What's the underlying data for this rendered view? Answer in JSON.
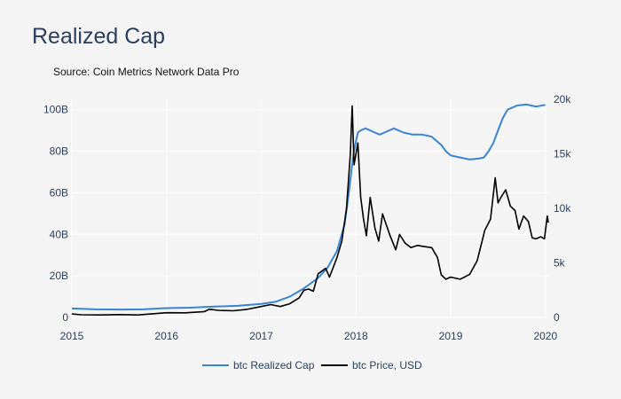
{
  "chart_data": {
    "type": "line",
    "title": "Realized Cap",
    "subtitle": "Source: Coin Metrics Network Data Pro",
    "x_ticks": [
      "2015",
      "2016",
      "2017",
      "2018",
      "2019",
      "2020"
    ],
    "y_left_ticks": [
      "0",
      "20B",
      "40B",
      "60B",
      "80B",
      "100B"
    ],
    "y_left_range": [
      0,
      105
    ],
    "y_left_unit": "B USD",
    "y_right_ticks": [
      "0",
      "5k",
      "10k",
      "15k",
      "20k"
    ],
    "y_right_range": [
      0,
      20000
    ],
    "x_range": [
      2015.0,
      2020.03
    ],
    "grid": true,
    "legend_position": "bottom",
    "series": [
      {
        "name": "btc Realized Cap",
        "axis": "left",
        "color": "#3a84d6",
        "points": [
          [
            2015.0,
            4.3
          ],
          [
            2015.25,
            3.9
          ],
          [
            2015.5,
            3.8
          ],
          [
            2015.75,
            3.9
          ],
          [
            2016.0,
            4.5
          ],
          [
            2016.25,
            4.7
          ],
          [
            2016.5,
            5.2
          ],
          [
            2016.75,
            5.6
          ],
          [
            2017.0,
            6.5
          ],
          [
            2017.15,
            7.5
          ],
          [
            2017.3,
            10
          ],
          [
            2017.45,
            14
          ],
          [
            2017.6,
            19
          ],
          [
            2017.7,
            24
          ],
          [
            2017.8,
            32
          ],
          [
            2017.88,
            45
          ],
          [
            2017.93,
            62
          ],
          [
            2017.97,
            78
          ],
          [
            2018.0,
            85
          ],
          [
            2018.02,
            89
          ],
          [
            2018.05,
            90
          ],
          [
            2018.1,
            91
          ],
          [
            2018.2,
            89
          ],
          [
            2018.25,
            88
          ],
          [
            2018.3,
            89
          ],
          [
            2018.4,
            91
          ],
          [
            2018.5,
            89
          ],
          [
            2018.6,
            88
          ],
          [
            2018.7,
            88
          ],
          [
            2018.8,
            87
          ],
          [
            2018.85,
            85
          ],
          [
            2018.9,
            83
          ],
          [
            2018.95,
            80
          ],
          [
            2019.0,
            78
          ],
          [
            2019.1,
            77
          ],
          [
            2019.2,
            76
          ],
          [
            2019.3,
            76.5
          ],
          [
            2019.35,
            77
          ],
          [
            2019.4,
            80
          ],
          [
            2019.45,
            84
          ],
          [
            2019.5,
            90
          ],
          [
            2019.55,
            96
          ],
          [
            2019.6,
            100
          ],
          [
            2019.7,
            102
          ],
          [
            2019.8,
            102.5
          ],
          [
            2019.9,
            101.5
          ],
          [
            2020.0,
            102.3
          ]
        ]
      },
      {
        "name": "btc Price, USD",
        "axis": "right",
        "color": "#000000",
        "points": [
          [
            2015.0,
            320
          ],
          [
            2015.1,
            240
          ],
          [
            2015.3,
            230
          ],
          [
            2015.5,
            260
          ],
          [
            2015.7,
            230
          ],
          [
            2015.85,
            330
          ],
          [
            2016.0,
            430
          ],
          [
            2016.2,
            420
          ],
          [
            2016.4,
            540
          ],
          [
            2016.45,
            750
          ],
          [
            2016.55,
            650
          ],
          [
            2016.7,
            610
          ],
          [
            2016.85,
            740
          ],
          [
            2017.0,
            1000
          ],
          [
            2017.1,
            1180
          ],
          [
            2017.2,
            1000
          ],
          [
            2017.3,
            1250
          ],
          [
            2017.4,
            1800
          ],
          [
            2017.45,
            2500
          ],
          [
            2017.5,
            2600
          ],
          [
            2017.55,
            2400
          ],
          [
            2017.6,
            4000
          ],
          [
            2017.68,
            4500
          ],
          [
            2017.72,
            3700
          ],
          [
            2017.8,
            5500
          ],
          [
            2017.85,
            7000
          ],
          [
            2017.9,
            10000
          ],
          [
            2017.94,
            15000
          ],
          [
            2017.96,
            19400
          ],
          [
            2017.98,
            14000
          ],
          [
            2018.02,
            16000
          ],
          [
            2018.05,
            11000
          ],
          [
            2018.08,
            9000
          ],
          [
            2018.11,
            7500
          ],
          [
            2018.15,
            11000
          ],
          [
            2018.2,
            8200
          ],
          [
            2018.24,
            7000
          ],
          [
            2018.28,
            9500
          ],
          [
            2018.32,
            8500
          ],
          [
            2018.36,
            7500
          ],
          [
            2018.42,
            6200
          ],
          [
            2018.46,
            7600
          ],
          [
            2018.52,
            6800
          ],
          [
            2018.58,
            6400
          ],
          [
            2018.65,
            6600
          ],
          [
            2018.72,
            6500
          ],
          [
            2018.8,
            6400
          ],
          [
            2018.86,
            5500
          ],
          [
            2018.9,
            3900
          ],
          [
            2018.95,
            3500
          ],
          [
            2019.0,
            3700
          ],
          [
            2019.1,
            3500
          ],
          [
            2019.2,
            3950
          ],
          [
            2019.28,
            5200
          ],
          [
            2019.36,
            8000
          ],
          [
            2019.42,
            9000
          ],
          [
            2019.47,
            12800
          ],
          [
            2019.5,
            10500
          ],
          [
            2019.53,
            11000
          ],
          [
            2019.58,
            11700
          ],
          [
            2019.63,
            10200
          ],
          [
            2019.68,
            9800
          ],
          [
            2019.72,
            8100
          ],
          [
            2019.77,
            9300
          ],
          [
            2019.82,
            8800
          ],
          [
            2019.86,
            7300
          ],
          [
            2019.9,
            7200
          ],
          [
            2019.95,
            7400
          ],
          [
            2019.99,
            7200
          ],
          [
            2020.02,
            9300
          ],
          [
            2020.03,
            8700
          ]
        ]
      }
    ]
  }
}
